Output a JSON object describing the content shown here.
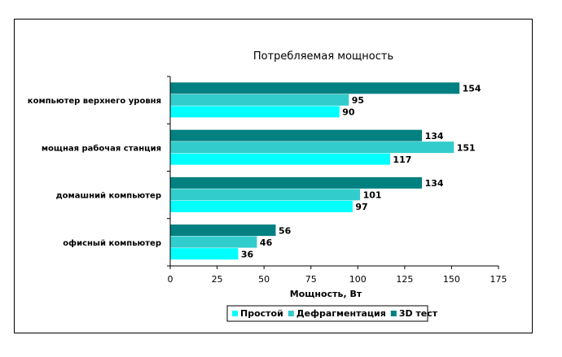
{
  "chart_data": {
    "type": "bar",
    "orientation": "horizontal",
    "title": "Потребляемая мощность",
    "xlabel": "Мощность, Вт",
    "ylabel": "",
    "xlim": [
      0,
      175
    ],
    "xticks": [
      0,
      25,
      50,
      75,
      100,
      125,
      150,
      175
    ],
    "categories": [
      "компьютер верхнего уровня",
      "мощная рабочая станция",
      "домашний компьютер",
      "офисный компьютер"
    ],
    "series": [
      {
        "name": "3D тест",
        "color": "#008080",
        "values": [
          154,
          134,
          134,
          56
        ]
      },
      {
        "name": "Дефрагментация",
        "color": "#33CCCC",
        "values": [
          95,
          151,
          101,
          46
        ]
      },
      {
        "name": "Простой",
        "color": "#00FFFF",
        "values": [
          90,
          117,
          97,
          36
        ]
      }
    ],
    "legend_order": [
      "Простой",
      "Дефрагментация",
      "3D тест"
    ],
    "legend_position": "bottom",
    "grid": false
  }
}
